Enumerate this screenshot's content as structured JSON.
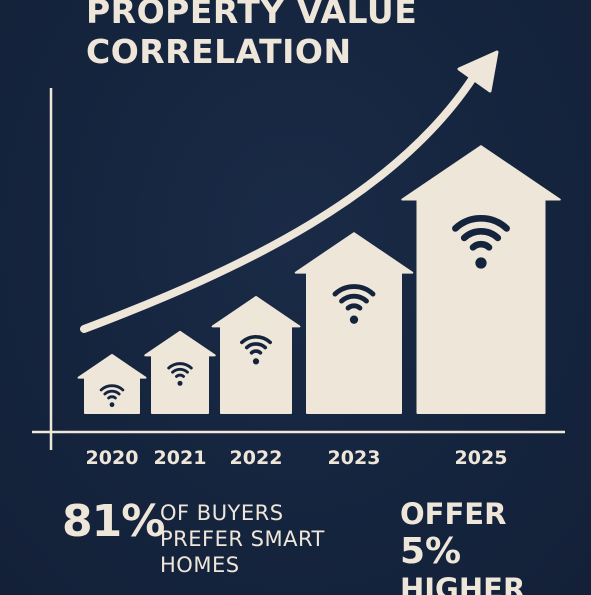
{
  "colors": {
    "background": "#15243d",
    "foreground": "#efe6da",
    "icon": "#15243d"
  },
  "header": {
    "title_line1": "PROPERTY VALUE",
    "title_line2": "CORRELATION"
  },
  "chart_data": {
    "type": "bar",
    "bar_shape": "house",
    "bar_icon": "wifi-icon",
    "trend_arrow": true,
    "grid": false,
    "categories": [
      "2020",
      "2021",
      "2022",
      "2023",
      "2025"
    ],
    "values": [
      1.0,
      1.4,
      2.0,
      3.1,
      4.6
    ],
    "ylim": [
      0,
      5
    ]
  },
  "stats": {
    "buyers_pct": "81%",
    "buyers_line1": "OF BUYERS",
    "buyers_line2": "PREFER SMART",
    "buyers_line3": "HOMES",
    "offer_line1": "OFFER",
    "offer_pct": "5%",
    "offer_line3": "HIGHER"
  }
}
